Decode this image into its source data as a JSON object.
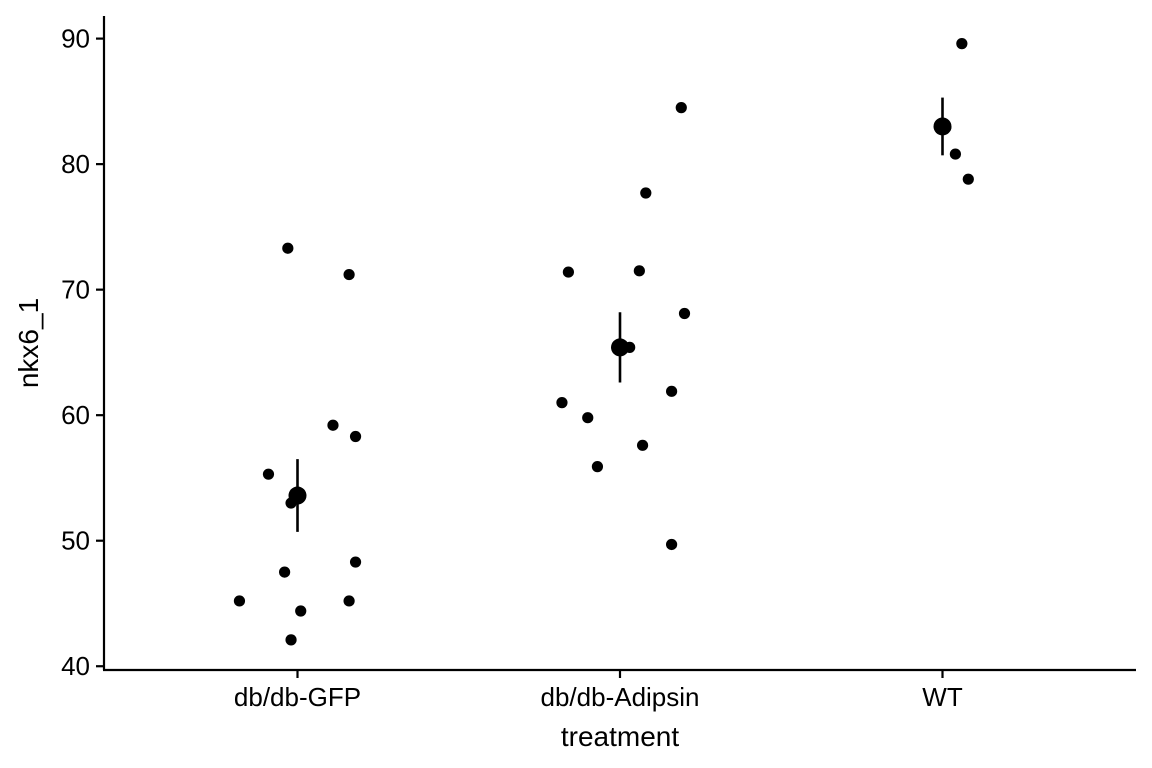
{
  "chart_data": {
    "type": "scatter",
    "title": "",
    "xlabel": "treatment",
    "ylabel": "nkx6_1",
    "categories": [
      "db/db-GFP",
      "db/db-Adipsin",
      "WT"
    ],
    "ylim": [
      39.7,
      91.8
    ],
    "yticks": [
      40,
      50,
      60,
      70,
      80,
      90
    ],
    "grid": false,
    "legend": "none",
    "point_color": "#000000",
    "groups": [
      {
        "category": "db/db-GFP",
        "mean": 53.6,
        "error_low": 50.7,
        "error_high": 56.5,
        "points": [
          {
            "x": 0.97,
            "y": 73.3
          },
          {
            "x": 1.16,
            "y": 71.2
          },
          {
            "x": 1.11,
            "y": 59.2
          },
          {
            "x": 1.18,
            "y": 58.3
          },
          {
            "x": 0.91,
            "y": 55.3
          },
          {
            "x": 0.98,
            "y": 53.0
          },
          {
            "x": 1.0,
            "y": 53.5
          },
          {
            "x": 1.18,
            "y": 48.3
          },
          {
            "x": 0.96,
            "y": 47.5
          },
          {
            "x": 0.82,
            "y": 45.2
          },
          {
            "x": 1.16,
            "y": 45.2
          },
          {
            "x": 1.01,
            "y": 44.4
          },
          {
            "x": 0.98,
            "y": 42.1
          }
        ]
      },
      {
        "category": "db/db-Adipsin",
        "mean": 65.4,
        "error_low": 62.6,
        "error_high": 68.2,
        "points": [
          {
            "x": 2.19,
            "y": 84.5
          },
          {
            "x": 2.08,
            "y": 77.7
          },
          {
            "x": 1.84,
            "y": 71.4
          },
          {
            "x": 2.06,
            "y": 71.5
          },
          {
            "x": 2.2,
            "y": 68.1
          },
          {
            "x": 2.03,
            "y": 65.4
          },
          {
            "x": 2.16,
            "y": 61.9
          },
          {
            "x": 1.82,
            "y": 61.0
          },
          {
            "x": 1.9,
            "y": 59.8
          },
          {
            "x": 2.07,
            "y": 57.6
          },
          {
            "x": 1.93,
            "y": 55.9
          },
          {
            "x": 2.16,
            "y": 49.7
          }
        ]
      },
      {
        "category": "WT",
        "mean": 83.0,
        "error_low": 80.7,
        "error_high": 85.3,
        "points": [
          {
            "x": 3.06,
            "y": 89.6
          },
          {
            "x": 3.01,
            "y": 82.9
          },
          {
            "x": 3.04,
            "y": 80.8
          },
          {
            "x": 3.08,
            "y": 78.8
          }
        ]
      }
    ]
  }
}
